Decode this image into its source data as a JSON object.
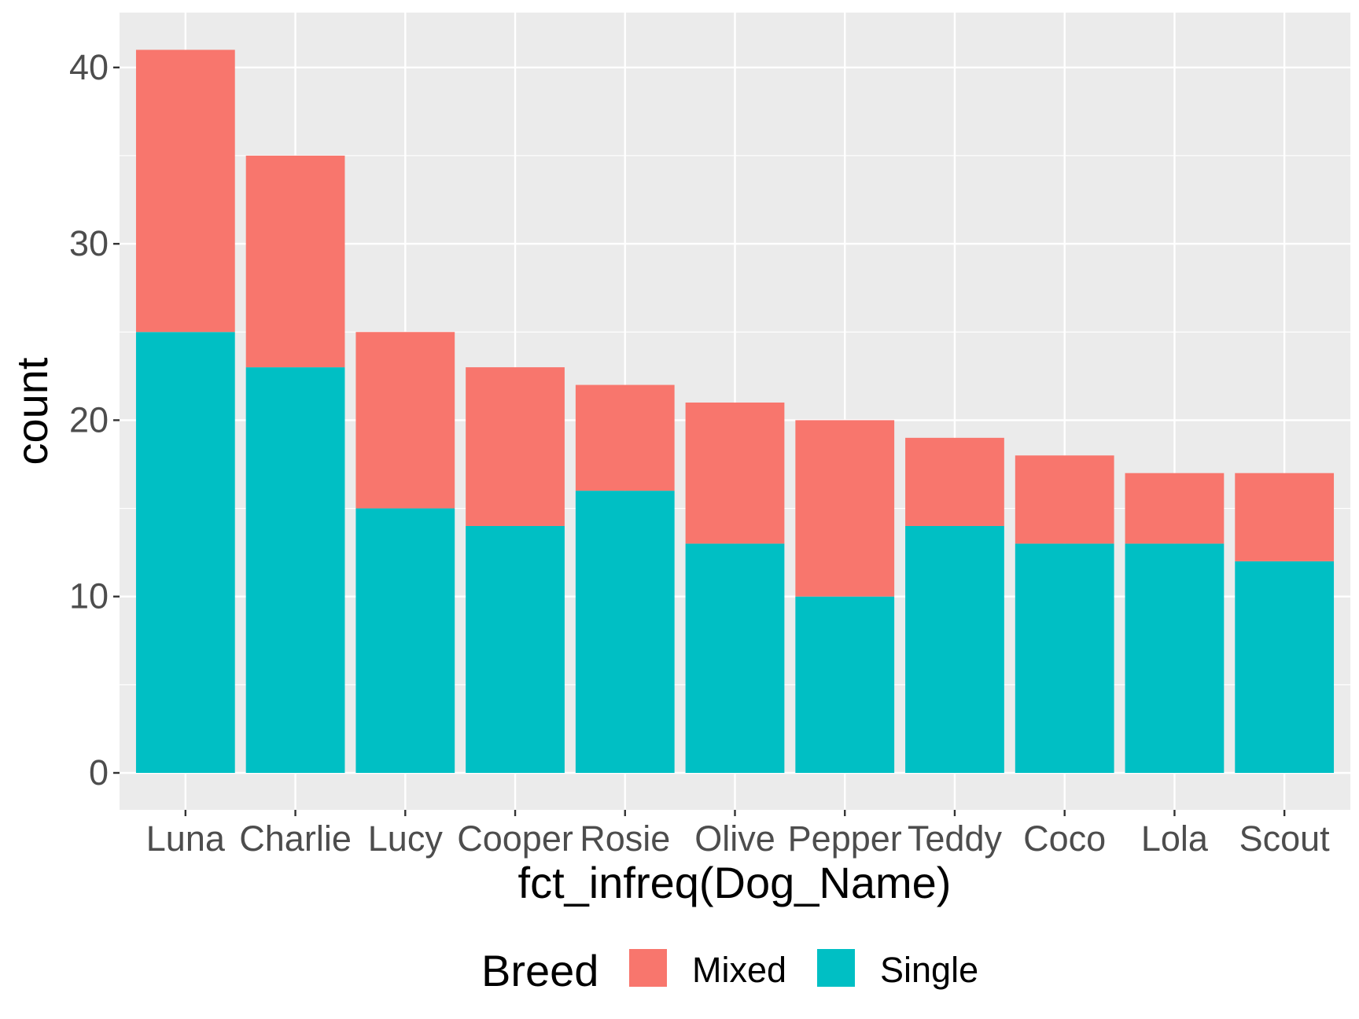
{
  "chart_data": {
    "type": "bar",
    "stacked": true,
    "categories": [
      "Luna",
      "Charlie",
      "Lucy",
      "Cooper",
      "Rosie",
      "Olive",
      "Pepper",
      "Teddy",
      "Coco",
      "Lola",
      "Scout"
    ],
    "series": [
      {
        "name": "Mixed",
        "values": [
          16,
          12,
          10,
          9,
          6,
          8,
          10,
          5,
          5,
          4,
          5
        ],
        "color": "#F8766D"
      },
      {
        "name": "Single",
        "values": [
          25,
          23,
          15,
          14,
          16,
          13,
          10,
          14,
          13,
          13,
          12
        ],
        "color": "#00BFC4"
      }
    ],
    "xlabel": "fct_infreq(Dog_Name)",
    "ylabel": "count",
    "ylim": [
      -2,
      43
    ],
    "yticks": [
      0,
      10,
      20,
      30,
      40
    ],
    "grid": true,
    "panel_background": "#EBEBEB",
    "legend": {
      "title": "Breed",
      "position": "bottom"
    }
  }
}
